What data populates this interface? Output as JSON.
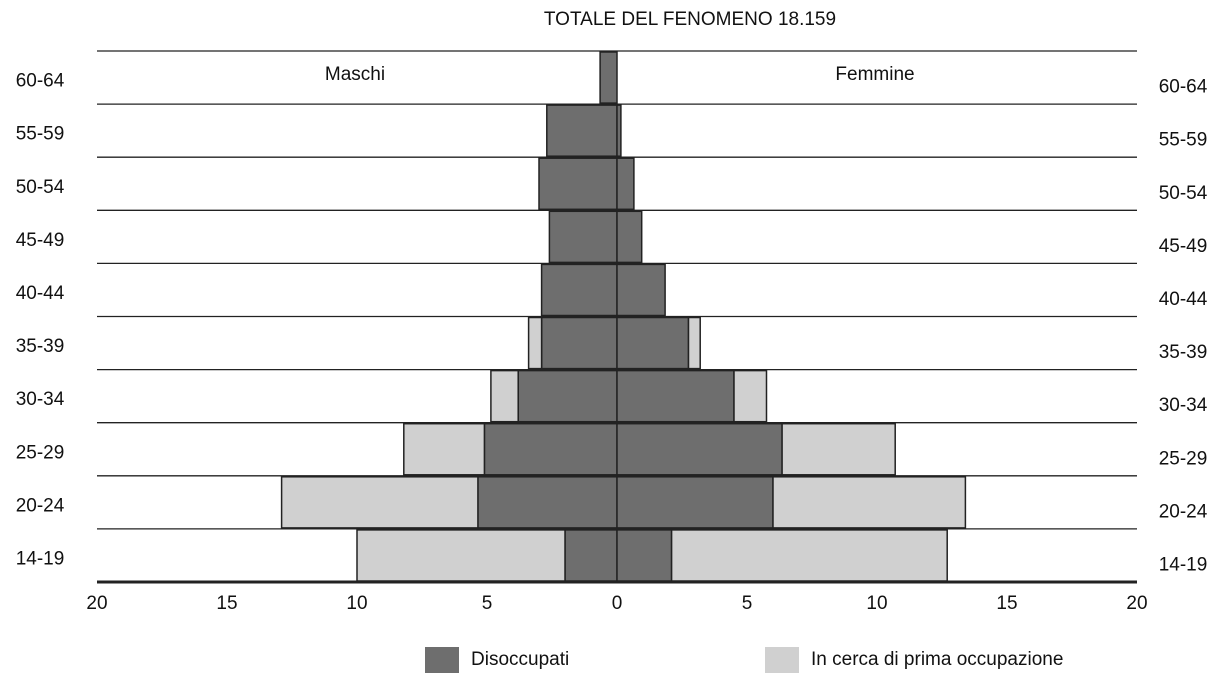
{
  "chart_data": {
    "type": "pyramid",
    "title": "TOTALE DEL FENOMENO 18.159",
    "left_label": "Maschi",
    "right_label": "Femmine",
    "categories": [
      "14-19",
      "20-24",
      "25-29",
      "30-34",
      "35-39",
      "40-44",
      "45-49",
      "50-54",
      "55-59",
      "60-64"
    ],
    "series": [
      {
        "name": "Disoccupati",
        "color": "#6e6e6e",
        "left": [
          2.0,
          5.35,
          5.1,
          3.8,
          2.9,
          2.9,
          2.6,
          3.0,
          2.7,
          0.65
        ],
        "right": [
          2.1,
          6.0,
          6.35,
          4.5,
          2.75,
          1.85,
          0.95,
          0.65,
          0.15,
          0
        ]
      },
      {
        "name": "In cerca di prima occupazione",
        "color": "#d0d0d0",
        "left": [
          8.0,
          7.55,
          3.1,
          1.05,
          0.5,
          0,
          0,
          0,
          0,
          0
        ],
        "right": [
          10.6,
          7.4,
          4.35,
          1.25,
          0.45,
          0,
          0,
          0,
          0,
          0
        ]
      }
    ],
    "xlim": [
      -20,
      20
    ],
    "xticks": [
      {
        "value": -20,
        "label": "20"
      },
      {
        "value": -15,
        "label": "15"
      },
      {
        "value": -10,
        "label": "10"
      },
      {
        "value": -5,
        "label": "5"
      },
      0,
      5,
      10,
      15,
      20
    ]
  }
}
